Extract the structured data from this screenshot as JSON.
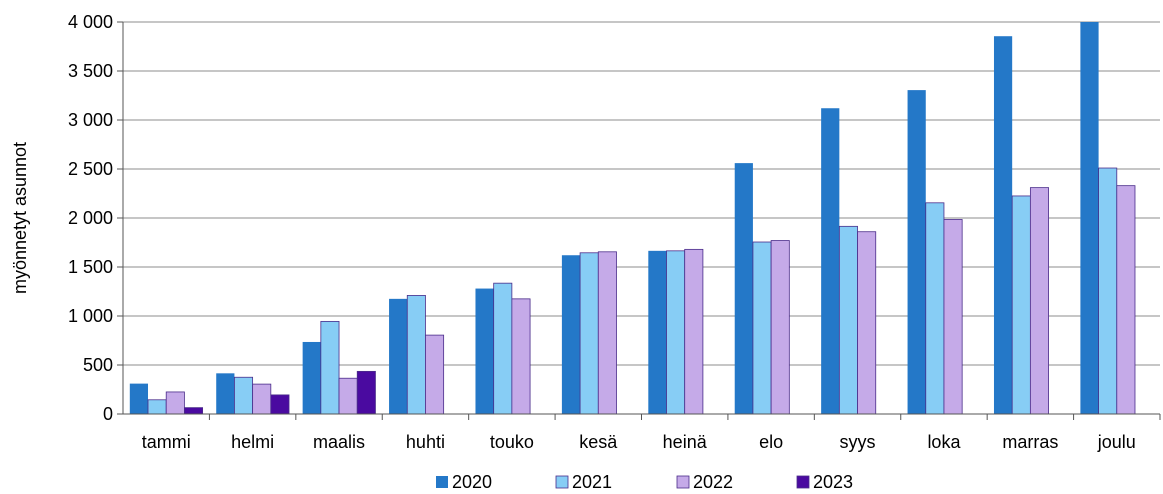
{
  "chart_data": {
    "type": "bar",
    "title": "",
    "xlabel": "",
    "ylabel": "myönnetyt asunnot",
    "ylim": [
      0,
      4000
    ],
    "yticks": [
      0,
      500,
      1000,
      1500,
      2000,
      2500,
      3000,
      3500,
      4000
    ],
    "ytick_labels": [
      "0",
      "500",
      "1 000",
      "1 500",
      "2 000",
      "2 500",
      "3 000",
      "3 500",
      "4 000"
    ],
    "grid": "horizontal",
    "legend_position": "bottom",
    "categories": [
      "tammi",
      "helmi",
      "maalis",
      "huhti",
      "touko",
      "kesä",
      "heinä",
      "elo",
      "syys",
      "loka",
      "marras",
      "joulu"
    ],
    "series": [
      {
        "name": "2020",
        "color": "#2478c8",
        "values": [
          310,
          415,
          735,
          1175,
          1280,
          1620,
          1665,
          2560,
          3120,
          3305,
          3855,
          4000
        ]
      },
      {
        "name": "2021",
        "color": "#87cdf5",
        "values": [
          145,
          375,
          945,
          1210,
          1335,
          1645,
          1665,
          1755,
          1915,
          2155,
          2225,
          2510
        ]
      },
      {
        "name": "2022",
        "color": "#c5aae8",
        "values": [
          225,
          305,
          365,
          805,
          1175,
          1655,
          1680,
          1770,
          1860,
          1985,
          2310,
          2330
        ]
      },
      {
        "name": "2023",
        "color": "#4a0aa0",
        "values": [
          65,
          195,
          435,
          null,
          null,
          null,
          null,
          null,
          null,
          null,
          null,
          null
        ]
      }
    ]
  }
}
